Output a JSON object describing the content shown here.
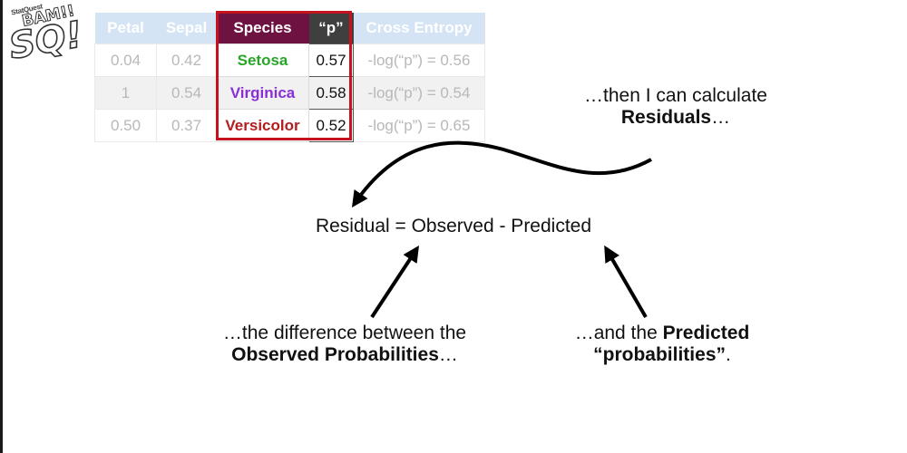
{
  "logo": {
    "top": "StatQuest",
    "bam": "BAM!!",
    "sq": "SQ!"
  },
  "table": {
    "headers": {
      "petal": "Petal",
      "sepal": "Sepal",
      "species": "Species",
      "p": "“p”",
      "ce": "Cross Entropy"
    },
    "rows": [
      {
        "petal": "0.04",
        "sepal": "0.42",
        "species": "Setosa",
        "p": "0.57",
        "ce": "-log(“p”) = 0.56"
      },
      {
        "petal": "1",
        "sepal": "0.54",
        "species": "Virginica",
        "p": "0.58",
        "ce": "-log(“p”) = 0.54"
      },
      {
        "petal": "0.50",
        "sepal": "0.37",
        "species": "Versicolor",
        "p": "0.52",
        "ce": "-log(“p”) = 0.65"
      }
    ],
    "species_colors": {
      "Setosa": "#28a528",
      "Virginica": "#8a2fd6",
      "Versicolor": "#b21e1e"
    }
  },
  "annotations": {
    "calc_line1": "…then I can calculate",
    "calc_bold": "Residuals",
    "calc_tail": "…",
    "equation": "Residual = Observed - Predicted",
    "obs_line1": "…the difference between the",
    "obs_bold": "Observed Probabilities",
    "obs_tail": "…",
    "pred_lead": "…and the ",
    "pred_bold1": "Predicted",
    "pred_bold2": "“probabilities”",
    "pred_tail": "."
  },
  "colors": {
    "species_header": "#6e1242",
    "p_header": "#3f3f3f",
    "faded_header": "#d4e4f4",
    "highlight_box": "#c4121f"
  }
}
